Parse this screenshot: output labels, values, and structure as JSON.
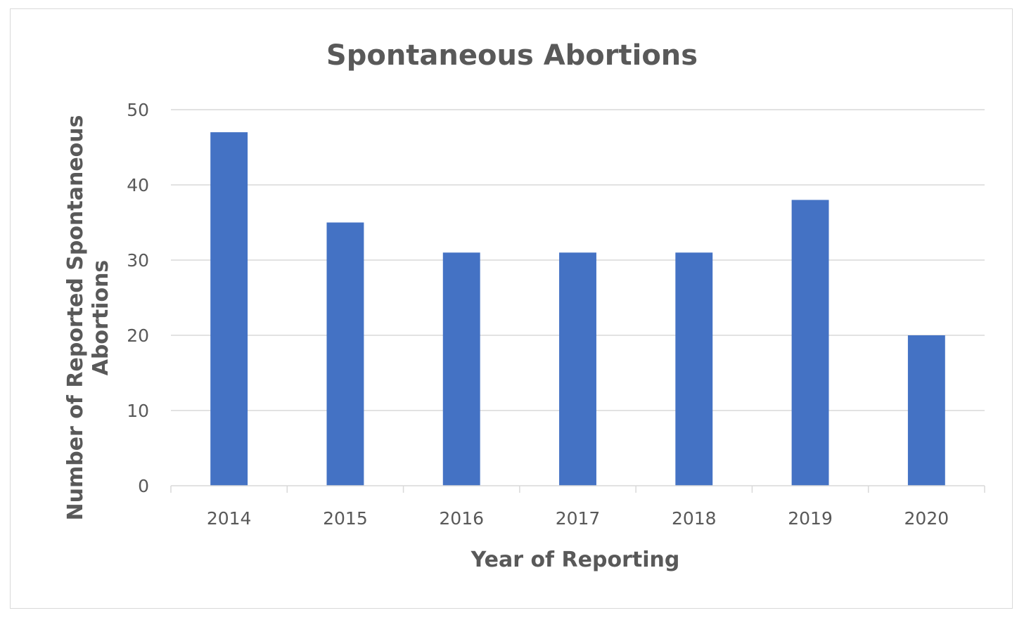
{
  "chart_data": {
    "type": "bar",
    "title": "Spontaneous  Abortions",
    "xlabel": "Year of Reporting",
    "ylabel_lines": [
      "Number of Reported Spontaneous",
      "Abortions"
    ],
    "categories": [
      "2014",
      "2015",
      "2016",
      "2017",
      "2018",
      "2019",
      "2020"
    ],
    "values": [
      47,
      35,
      31,
      31,
      31,
      38,
      20
    ],
    "ylim": [
      0,
      50
    ],
    "yticks": [
      "0",
      "10",
      "20",
      "30",
      "40",
      "50"
    ],
    "grid": true,
    "legend": "none",
    "bar_color": "#4472c4"
  }
}
